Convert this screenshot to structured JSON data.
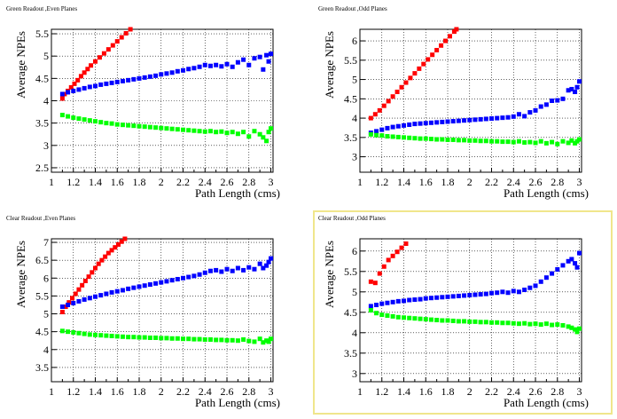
{
  "chart_data": [
    {
      "type": "scatter",
      "title": "Green Readout ,Even Planes",
      "xlabel": "Path Length (cms)",
      "ylabel": "Average NPEs",
      "xlim": [
        1,
        3.02
      ],
      "ylim": [
        2.4,
        5.6
      ],
      "xticks": [
        1,
        1.2,
        1.4,
        1.6,
        1.8,
        2,
        2.2,
        2.4,
        2.6,
        2.8,
        3
      ],
      "xtick_labels": [
        "1",
        "1.2",
        "1.4",
        "1.6",
        "1.8",
        "2",
        "2.2",
        "2.4",
        "2.6",
        "2.8",
        "3"
      ],
      "yticks": [
        2.5,
        3,
        3.5,
        4,
        4.5,
        5,
        5.5
      ],
      "ytick_labels": [
        "2.5",
        "3",
        "3.5",
        "4",
        "4.5",
        "5",
        "5.5"
      ],
      "grid": true,
      "selected": false,
      "series": [
        {
          "color": "#ff0000",
          "x": [
            1.1,
            1.12,
            1.15,
            1.18,
            1.21,
            1.24,
            1.27,
            1.3,
            1.33,
            1.36,
            1.4,
            1.44,
            1.48,
            1.52,
            1.56,
            1.6,
            1.64,
            1.68,
            1.72
          ],
          "y": [
            4.05,
            4.15,
            4.22,
            4.3,
            4.38,
            4.46,
            4.55,
            4.63,
            4.71,
            4.79,
            4.88,
            4.97,
            5.06,
            5.15,
            5.24,
            5.33,
            5.42,
            5.51,
            5.6
          ]
        },
        {
          "color": "#0000ff",
          "x": [
            1.1,
            1.15,
            1.2,
            1.25,
            1.3,
            1.35,
            1.4,
            1.45,
            1.5,
            1.55,
            1.6,
            1.65,
            1.7,
            1.75,
            1.8,
            1.85,
            1.9,
            1.95,
            2.0,
            2.05,
            2.1,
            2.15,
            2.2,
            2.25,
            2.3,
            2.35,
            2.4,
            2.45,
            2.5,
            2.55,
            2.6,
            2.65,
            2.7,
            2.75,
            2.8,
            2.85,
            2.9,
            2.93,
            2.96,
            2.98,
            3.0
          ],
          "y": [
            4.15,
            4.19,
            4.22,
            4.25,
            4.28,
            4.31,
            4.33,
            4.36,
            4.38,
            4.4,
            4.42,
            4.44,
            4.46,
            4.48,
            4.5,
            4.52,
            4.54,
            4.56,
            4.59,
            4.61,
            4.63,
            4.66,
            4.68,
            4.71,
            4.73,
            4.76,
            4.8,
            4.78,
            4.8,
            4.77,
            4.82,
            4.76,
            4.86,
            4.92,
            4.8,
            4.95,
            4.98,
            4.7,
            5.02,
            4.88,
            5.05
          ]
        },
        {
          "color": "#00ff00",
          "x": [
            1.1,
            1.15,
            1.2,
            1.25,
            1.3,
            1.35,
            1.4,
            1.45,
            1.5,
            1.55,
            1.6,
            1.65,
            1.7,
            1.75,
            1.8,
            1.85,
            1.9,
            1.95,
            2.0,
            2.05,
            2.1,
            2.15,
            2.2,
            2.25,
            2.3,
            2.35,
            2.4,
            2.45,
            2.5,
            2.55,
            2.6,
            2.65,
            2.7,
            2.75,
            2.8,
            2.85,
            2.9,
            2.93,
            2.96,
            2.98,
            3.0
          ],
          "y": [
            3.68,
            3.65,
            3.62,
            3.6,
            3.58,
            3.56,
            3.54,
            3.52,
            3.5,
            3.49,
            3.47,
            3.46,
            3.45,
            3.44,
            3.43,
            3.42,
            3.41,
            3.4,
            3.39,
            3.38,
            3.37,
            3.36,
            3.35,
            3.34,
            3.33,
            3.32,
            3.31,
            3.32,
            3.3,
            3.31,
            3.28,
            3.3,
            3.26,
            3.3,
            3.2,
            3.32,
            3.25,
            3.18,
            3.1,
            3.3,
            3.38
          ]
        }
      ]
    },
    {
      "type": "scatter",
      "title": "Green Readout ,Odd Planes",
      "xlabel": "Path Length (cms)",
      "ylabel": "Average NPEs",
      "xlim": [
        1,
        3.02
      ],
      "ylim": [
        2.6,
        6.3
      ],
      "xticks": [
        1,
        1.2,
        1.4,
        1.6,
        1.8,
        2,
        2.2,
        2.4,
        2.6,
        2.8,
        3
      ],
      "xtick_labels": [
        "1",
        "1.2",
        "1.4",
        "1.6",
        "1.8",
        "2",
        "2.2",
        "2.4",
        "2.6",
        "2.8",
        "3"
      ],
      "yticks": [
        3,
        3.5,
        4,
        4.5,
        5,
        5.5,
        6
      ],
      "ytick_labels": [
        "3",
        "3.5",
        "4",
        "4.5",
        "5",
        "5.5",
        "6"
      ],
      "grid": true,
      "selected": false,
      "series": [
        {
          "color": "#ff0000",
          "x": [
            1.1,
            1.14,
            1.18,
            1.22,
            1.26,
            1.3,
            1.34,
            1.38,
            1.42,
            1.46,
            1.5,
            1.54,
            1.58,
            1.62,
            1.66,
            1.7,
            1.74,
            1.78,
            1.82,
            1.86,
            1.88
          ],
          "y": [
            4.0,
            4.1,
            4.2,
            4.32,
            4.44,
            4.56,
            4.68,
            4.8,
            4.92,
            5.04,
            5.16,
            5.28,
            5.4,
            5.52,
            5.64,
            5.76,
            5.88,
            6.0,
            6.12,
            6.24,
            6.3
          ]
        },
        {
          "color": "#0000ff",
          "x": [
            1.1,
            1.15,
            1.2,
            1.25,
            1.3,
            1.35,
            1.4,
            1.45,
            1.5,
            1.55,
            1.6,
            1.65,
            1.7,
            1.75,
            1.8,
            1.85,
            1.9,
            1.95,
            2.0,
            2.05,
            2.1,
            2.15,
            2.2,
            2.25,
            2.3,
            2.35,
            2.4,
            2.45,
            2.5,
            2.55,
            2.6,
            2.65,
            2.7,
            2.75,
            2.8,
            2.85,
            2.9,
            2.93,
            2.96,
            2.98,
            3.0
          ],
          "y": [
            3.62,
            3.66,
            3.7,
            3.74,
            3.77,
            3.79,
            3.81,
            3.83,
            3.85,
            3.86,
            3.87,
            3.88,
            3.89,
            3.9,
            3.91,
            3.92,
            3.93,
            3.94,
            3.95,
            3.96,
            3.97,
            3.98,
            3.99,
            4.0,
            4.01,
            4.02,
            4.04,
            4.1,
            4.05,
            4.15,
            4.2,
            4.3,
            4.35,
            4.45,
            4.46,
            4.5,
            4.72,
            4.75,
            4.68,
            4.8,
            4.95
          ]
        },
        {
          "color": "#00ff00",
          "x": [
            1.1,
            1.15,
            1.2,
            1.25,
            1.3,
            1.35,
            1.4,
            1.45,
            1.5,
            1.55,
            1.6,
            1.65,
            1.7,
            1.75,
            1.8,
            1.85,
            1.9,
            1.95,
            2.0,
            2.05,
            2.1,
            2.15,
            2.2,
            2.25,
            2.3,
            2.35,
            2.4,
            2.45,
            2.5,
            2.55,
            2.6,
            2.65,
            2.7,
            2.75,
            2.8,
            2.85,
            2.9,
            2.93,
            2.96,
            2.98,
            3.0
          ],
          "y": [
            3.58,
            3.56,
            3.55,
            3.53,
            3.52,
            3.51,
            3.5,
            3.49,
            3.48,
            3.47,
            3.47,
            3.46,
            3.45,
            3.45,
            3.44,
            3.44,
            3.43,
            3.43,
            3.42,
            3.42,
            3.41,
            3.41,
            3.4,
            3.4,
            3.39,
            3.39,
            3.38,
            3.4,
            3.37,
            3.38,
            3.36,
            3.4,
            3.35,
            3.38,
            3.33,
            3.4,
            3.36,
            3.42,
            3.35,
            3.4,
            3.45
          ]
        }
      ]
    },
    {
      "type": "scatter",
      "title": "Clear Readout ,Even Planes",
      "xlabel": "Path Length (cms)",
      "ylabel": "Average NPEs",
      "xlim": [
        1,
        3.02
      ],
      "ylim": [
        3.1,
        7.1
      ],
      "xticks": [
        1,
        1.2,
        1.4,
        1.6,
        1.8,
        2,
        2.2,
        2.4,
        2.6,
        2.8,
        3
      ],
      "xtick_labels": [
        "1",
        "1.2",
        "1.4",
        "1.6",
        "1.8",
        "2",
        "2.2",
        "2.4",
        "2.6",
        "2.8",
        "3"
      ],
      "yticks": [
        3.5,
        4,
        4.5,
        5,
        5.5,
        6,
        6.5,
        7
      ],
      "ytick_labels": [
        "3.5",
        "4",
        "4.5",
        "5",
        "5.5",
        "6",
        "6.5",
        "7"
      ],
      "grid": true,
      "selected": false,
      "series": [
        {
          "color": "#ff0000",
          "x": [
            1.1,
            1.13,
            1.16,
            1.19,
            1.22,
            1.25,
            1.28,
            1.31,
            1.34,
            1.37,
            1.4,
            1.43,
            1.46,
            1.49,
            1.52,
            1.55,
            1.58,
            1.61,
            1.64,
            1.67
          ],
          "y": [
            5.05,
            5.2,
            5.32,
            5.44,
            5.56,
            5.68,
            5.8,
            5.92,
            6.04,
            6.16,
            6.28,
            6.4,
            6.5,
            6.6,
            6.7,
            6.78,
            6.86,
            6.94,
            7.02,
            7.1
          ]
        },
        {
          "color": "#0000ff",
          "x": [
            1.1,
            1.15,
            1.2,
            1.25,
            1.3,
            1.35,
            1.4,
            1.45,
            1.5,
            1.55,
            1.6,
            1.65,
            1.7,
            1.75,
            1.8,
            1.85,
            1.9,
            1.95,
            2.0,
            2.05,
            2.1,
            2.15,
            2.2,
            2.25,
            2.3,
            2.35,
            2.4,
            2.45,
            2.5,
            2.55,
            2.6,
            2.65,
            2.7,
            2.75,
            2.8,
            2.85,
            2.9,
            2.93,
            2.96,
            2.98,
            3.0
          ],
          "y": [
            5.2,
            5.25,
            5.3,
            5.35,
            5.4,
            5.44,
            5.48,
            5.52,
            5.56,
            5.6,
            5.63,
            5.66,
            5.7,
            5.73,
            5.76,
            5.79,
            5.82,
            5.85,
            5.88,
            5.91,
            5.94,
            5.97,
            6.0,
            6.03,
            6.06,
            6.1,
            6.15,
            6.2,
            6.22,
            6.18,
            6.25,
            6.2,
            6.28,
            6.22,
            6.3,
            6.25,
            6.4,
            6.28,
            6.35,
            6.45,
            6.55
          ]
        },
        {
          "color": "#00ff00",
          "x": [
            1.1,
            1.15,
            1.2,
            1.25,
            1.3,
            1.35,
            1.4,
            1.45,
            1.5,
            1.55,
            1.6,
            1.65,
            1.7,
            1.75,
            1.8,
            1.85,
            1.9,
            1.95,
            2.0,
            2.05,
            2.1,
            2.15,
            2.2,
            2.25,
            2.3,
            2.35,
            2.4,
            2.45,
            2.5,
            2.55,
            2.6,
            2.65,
            2.7,
            2.75,
            2.8,
            2.85,
            2.9,
            2.93,
            2.96,
            2.98,
            3.0
          ],
          "y": [
            4.52,
            4.5,
            4.48,
            4.46,
            4.44,
            4.42,
            4.41,
            4.4,
            4.39,
            4.38,
            4.37,
            4.36,
            4.35,
            4.35,
            4.34,
            4.34,
            4.33,
            4.33,
            4.32,
            4.32,
            4.31,
            4.31,
            4.3,
            4.3,
            4.29,
            4.29,
            4.28,
            4.28,
            4.27,
            4.27,
            4.26,
            4.26,
            4.25,
            4.28,
            4.24,
            4.22,
            4.3,
            4.2,
            4.25,
            4.22,
            4.3
          ]
        }
      ]
    },
    {
      "type": "scatter",
      "title": "Clear Readout ,Odd Planes",
      "xlabel": "Path Length (cms)",
      "ylabel": "Average NPEs",
      "xlim": [
        1,
        3.02
      ],
      "ylim": [
        2.8,
        6.3
      ],
      "xticks": [
        1,
        1.2,
        1.4,
        1.6,
        1.8,
        2,
        2.2,
        2.4,
        2.6,
        2.8,
        3
      ],
      "xtick_labels": [
        "1",
        "1.2",
        "1.4",
        "1.6",
        "1.8",
        "2",
        "2.2",
        "2.4",
        "2.6",
        "2.8",
        "3"
      ],
      "yticks": [
        3,
        3.5,
        4,
        4.5,
        5,
        5.5,
        6
      ],
      "ytick_labels": [
        "3",
        "3.5",
        "4",
        "4.5",
        "5",
        "5.5",
        "6"
      ],
      "grid": true,
      "selected": true,
      "series": [
        {
          "color": "#ff0000",
          "x": [
            1.1,
            1.14,
            1.18,
            1.22,
            1.26,
            1.3,
            1.34,
            1.38,
            1.42
          ],
          "y": [
            5.25,
            5.22,
            5.45,
            5.62,
            5.78,
            5.88,
            5.98,
            6.08,
            6.18
          ]
        },
        {
          "color": "#0000ff",
          "x": [
            1.1,
            1.15,
            1.2,
            1.25,
            1.3,
            1.35,
            1.4,
            1.45,
            1.5,
            1.55,
            1.6,
            1.65,
            1.7,
            1.75,
            1.8,
            1.85,
            1.9,
            1.95,
            2.0,
            2.05,
            2.1,
            2.15,
            2.2,
            2.25,
            2.3,
            2.35,
            2.4,
            2.45,
            2.5,
            2.55,
            2.6,
            2.65,
            2.7,
            2.75,
            2.8,
            2.85,
            2.9,
            2.93,
            2.96,
            2.98,
            3.0
          ],
          "y": [
            4.65,
            4.68,
            4.71,
            4.73,
            4.75,
            4.77,
            4.78,
            4.8,
            4.81,
            4.82,
            4.84,
            4.85,
            4.86,
            4.87,
            4.88,
            4.89,
            4.9,
            4.91,
            4.92,
            4.93,
            4.94,
            4.95,
            4.97,
            4.98,
            5.0,
            4.98,
            5.02,
            5.0,
            5.05,
            5.1,
            5.15,
            5.25,
            5.35,
            5.45,
            5.55,
            5.65,
            5.75,
            5.8,
            5.7,
            5.6,
            5.95
          ]
        },
        {
          "color": "#00ff00",
          "x": [
            1.1,
            1.15,
            1.2,
            1.25,
            1.3,
            1.35,
            1.4,
            1.45,
            1.5,
            1.55,
            1.6,
            1.65,
            1.7,
            1.75,
            1.8,
            1.85,
            1.9,
            1.95,
            2.0,
            2.05,
            2.1,
            2.15,
            2.2,
            2.25,
            2.3,
            2.35,
            2.4,
            2.45,
            2.5,
            2.55,
            2.6,
            2.65,
            2.7,
            2.75,
            2.8,
            2.85,
            2.9,
            2.93,
            2.96,
            2.98,
            3.0
          ],
          "y": [
            4.55,
            4.48,
            4.44,
            4.42,
            4.4,
            4.38,
            4.37,
            4.36,
            4.35,
            4.34,
            4.33,
            4.32,
            4.31,
            4.3,
            4.3,
            4.29,
            4.28,
            4.28,
            4.27,
            4.27,
            4.26,
            4.26,
            4.25,
            4.25,
            4.24,
            4.24,
            4.23,
            4.22,
            4.23,
            4.21,
            4.22,
            4.2,
            4.22,
            4.19,
            4.2,
            4.18,
            4.15,
            4.12,
            4.08,
            4.02,
            4.1
          ]
        }
      ]
    }
  ]
}
